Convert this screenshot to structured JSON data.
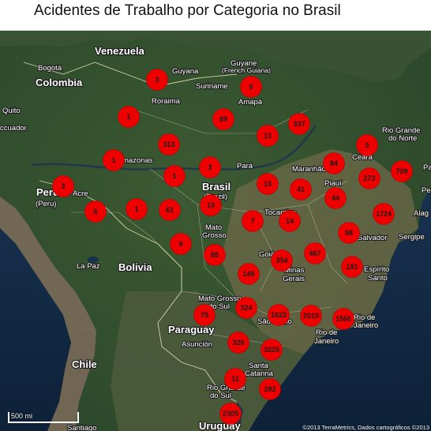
{
  "title": "Acidentes de Trabalho por Categoria no Brasil",
  "map_labels": {
    "venezuela": "Venezuela",
    "bogota": "Bogotá",
    "guyana": "Guyana",
    "guyane": "Guyane",
    "french_guiana": "(French Guiana)",
    "suriname": "Suriname",
    "colombia": "Colombia",
    "roraima": "Roraima",
    "amapa": "Amapá",
    "quito": "Quito",
    "ecuador": "ccuador",
    "amazonas": "mazonas",
    "para": "Pará",
    "maranhao": "Maranhão",
    "ceara": "Ceará",
    "rio_grande_do_norte": "Rio Grande",
    "rio_grande_do_norte_2": "do Norte",
    "piaui": "Piauí",
    "brasil": "Brasil",
    "brazil": "(Brazil)",
    "peru": "Peru",
    "peru_2": "(Peru)",
    "acre": "Acre",
    "tocantins": "Tocantins",
    "mato_grosso": "Mato",
    "mato_grosso_2": "Grosso",
    "salvador": "Salvador",
    "sergipe": "Sergipe",
    "alagoas": "Alag",
    "pernambuco": "Pe",
    "pa_right": "Pa",
    "la_paz": "La Paz",
    "bolivia": "Bolivia",
    "goias": "Goiá",
    "minas": "Minas",
    "minas_2": "Gerais",
    "espirito_santo": "Espírito",
    "espirito_santo_2": "Santo",
    "mato_grosso_do_sul": "Mato Grosso",
    "mato_grosso_do_sul_2": "do Sul",
    "paraguay": "Paraguay",
    "asuncion": "Asunción",
    "sao_paulo": "São Paulo",
    "rio_de_janeiro": "Rio de",
    "rio_de_janeiro_2": "Janeiro",
    "rio_city": "Rio de",
    "rio_city_2": "Janeiro",
    "chile": "Chile",
    "santa_catarina": "Santa",
    "santa_catarina_2": "Catarina",
    "rio_grande_do_sul": "Rio Grande",
    "rio_grande_do_sul_2": "do Sul",
    "uruguay": "Uruguay",
    "santiago": "Santiago"
  },
  "scale_label": "500 mi",
  "copyright": "©2013 TerraMetrics, Dados cartográficos ©2013",
  "markers": [
    {
      "value": "3"
    },
    {
      "value": "0"
    },
    {
      "value": "1"
    },
    {
      "value": "89"
    },
    {
      "value": "337"
    },
    {
      "value": "13"
    },
    {
      "value": "313"
    },
    {
      "value": "5"
    },
    {
      "value": "1"
    },
    {
      "value": "84"
    },
    {
      "value": "709"
    },
    {
      "value": "1"
    },
    {
      "value": "3"
    },
    {
      "value": "273"
    },
    {
      "value": "3"
    },
    {
      "value": "13"
    },
    {
      "value": "41"
    },
    {
      "value": "44"
    },
    {
      "value": "10"
    },
    {
      "value": "1"
    },
    {
      "value": "61"
    },
    {
      "value": "6"
    },
    {
      "value": "7"
    },
    {
      "value": "14"
    },
    {
      "value": "1724"
    },
    {
      "value": "58"
    },
    {
      "value": "9"
    },
    {
      "value": "85"
    },
    {
      "value": "467"
    },
    {
      "value": "354"
    },
    {
      "value": "191"
    },
    {
      "value": "145"
    },
    {
      "value": "324"
    },
    {
      "value": "75"
    },
    {
      "value": "1023"
    },
    {
      "value": "2010"
    },
    {
      "value": "1560"
    },
    {
      "value": "326"
    },
    {
      "value": "3225"
    },
    {
      "value": "11"
    },
    {
      "value": "292"
    },
    {
      "value": "2305"
    }
  ]
}
